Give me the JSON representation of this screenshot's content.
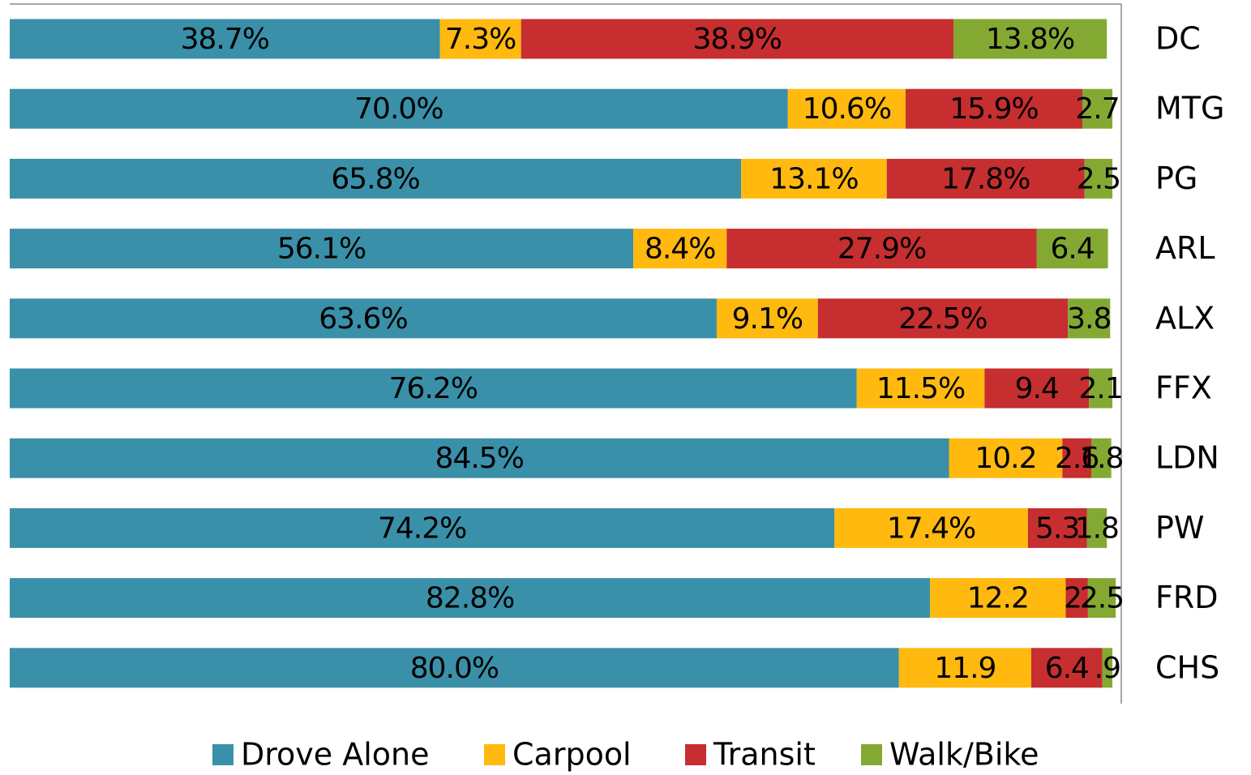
{
  "chart_data": {
    "type": "stacked-bar-horizontal",
    "categories": [
      "DC",
      "MTG",
      "PG",
      "ARL",
      "ALX",
      "FFX",
      "LDN",
      "PW",
      "FRD",
      "CHS"
    ],
    "xlim": [
      0,
      100
    ],
    "legend": "bottom",
    "series": [
      {
        "name": "Drove Alone",
        "color": "#3a90a8",
        "values": [
          38.7,
          70,
          65.8,
          56.1,
          63.6,
          76.2,
          84.5,
          74.2,
          82.8,
          80
        ],
        "value_labels": [
          "38.7%",
          "70.0%",
          "65.8%",
          "56.1%",
          "63.6%",
          "76.2%",
          "84.5%",
          "74.2%",
          "82.8%",
          "80.0%"
        ]
      },
      {
        "name": "Carpool",
        "color": "#ffb90f",
        "values": [
          7.3,
          10.6,
          13.1,
          8.4,
          9.1,
          11.5,
          10.2,
          17.4,
          12.2,
          11.9
        ],
        "value_labels": [
          "7.3%",
          "10.6%",
          "13.1%",
          "8.4%",
          "9.1%",
          "11.5%",
          "10.2",
          "17.4%",
          "12.2",
          "11.9"
        ]
      },
      {
        "name": "Transit",
        "color": "#c62e2f",
        "values": [
          38.9,
          15.9,
          17.8,
          27.9,
          22.5,
          9.4,
          2.6,
          5.3,
          2,
          6.4
        ],
        "value_labels": [
          "38.9%",
          "15.9%",
          "17.8%",
          "27.9%",
          "22.5%",
          "9.4",
          "2.6",
          "5.3",
          "2.",
          "6.4"
        ]
      },
      {
        "name": "Walk/Bike",
        "color": "#84a933",
        "values": [
          13.8,
          2.7,
          2.5,
          6.4,
          3.8,
          2.1,
          1.8,
          1.8,
          2.5,
          0.9
        ],
        "value_labels": [
          "13.8%",
          "2.7",
          "2.5",
          "6.4",
          "3.8",
          "2.1",
          "1.8",
          "1.8",
          "2.5",
          ".9"
        ]
      }
    ]
  }
}
